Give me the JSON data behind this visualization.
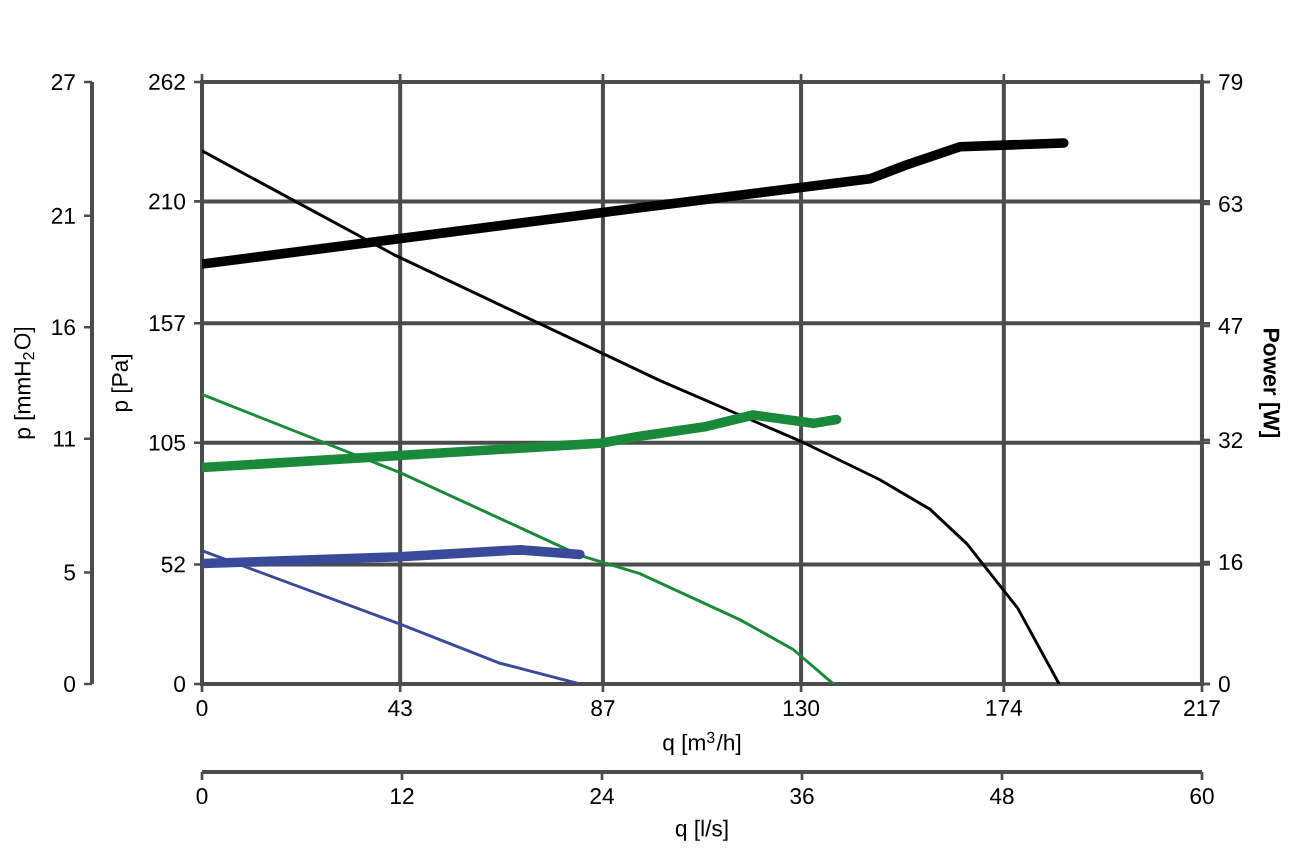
{
  "chart_data": {
    "type": "line",
    "xlabel": "q [m$^{3}$/h]",
    "ylabel": "p [Pa]",
    "y2label": "Power [W]",
    "y3label": "p [mmH$_{2}$O]",
    "x2label": "q [l/s]",
    "xlim": [
      0,
      217
    ],
    "xticks": [
      0,
      43,
      87,
      130,
      174,
      217
    ],
    "ylim": [
      0,
      262
    ],
    "yticks": [
      0,
      52,
      105,
      157,
      210,
      262
    ],
    "y2lim": [
      0,
      79
    ],
    "y2ticks": [
      0,
      16,
      32,
      47,
      63,
      79
    ],
    "y3lim": [
      0,
      27
    ],
    "y3ticks": [
      0,
      5,
      11,
      16,
      21,
      27
    ],
    "x2lim": [
      0,
      60
    ],
    "x2ticks": [
      0,
      12,
      24,
      36,
      48,
      60
    ],
    "grid": true,
    "marker": "none",
    "line_style": "solid",
    "series": [
      {
        "color": "#000000",
        "x": [
          0,
          41.5,
          99.4,
          130.6,
          147,
          158,
          166,
          177,
          186
        ],
        "values": [
          232,
          187,
          132,
          105,
          89,
          76,
          61,
          33,
          0
        ]
      },
      {
        "color": "#1a8a3a",
        "x": [
          0,
          43,
          82,
          95,
          116.7,
          128.3,
          137
        ],
        "values": [
          126,
          92,
          56,
          48,
          28,
          15,
          0
        ]
      },
      {
        "color": "#3a4a9a",
        "x": [
          0,
          43,
          64.7,
          82
        ],
        "values": [
          58,
          26,
          9,
          0
        ]
      },
      {
        "color": "#000000",
        "axis": "y2",
        "x": [
          0,
          95,
          145,
          152.8,
          164.5,
          187
        ],
        "values": [
          55.1,
          62.5,
          66.3,
          68.1,
          70.5,
          71.0
        ]
      },
      {
        "color": "#1a8a3a",
        "axis": "y2",
        "x": [
          0,
          86.4,
          95,
          109.5,
          119.6,
          132.7,
          137.7
        ],
        "values": [
          28.4,
          31.6,
          32.5,
          33.8,
          35.3,
          34.2,
          34.7
        ]
      },
      {
        "color": "#3a4a9a",
        "axis": "y2",
        "x": [
          0,
          43,
          69,
          82
        ],
        "values": [
          15.8,
          16.7,
          17.6,
          17.0
        ]
      }
    ]
  }
}
